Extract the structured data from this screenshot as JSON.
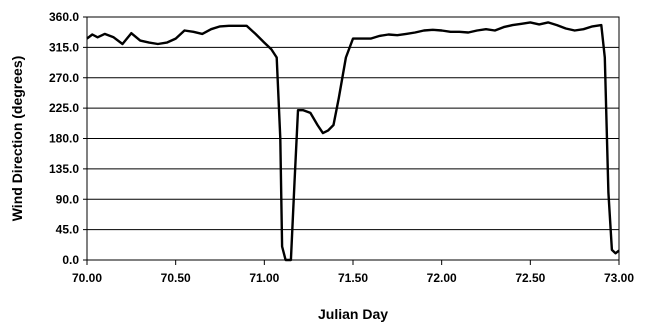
{
  "chart_data": {
    "type": "line",
    "title": "",
    "xlabel": "Julian Day",
    "ylabel": "Wind Direction (degrees)",
    "xlim": [
      70.0,
      73.0
    ],
    "ylim": [
      0.0,
      360.0
    ],
    "x_ticks": [
      70.0,
      70.5,
      71.0,
      71.5,
      72.0,
      72.5,
      73.0
    ],
    "x_tick_labels": [
      "70.00",
      "70.50",
      "71.00",
      "71.50",
      "72.00",
      "72.50",
      "73.00"
    ],
    "y_ticks": [
      0,
      45,
      90,
      135,
      180,
      225,
      270,
      315,
      360
    ],
    "y_tick_labels": [
      "0.0",
      "45.0",
      "90.0",
      "135.0",
      "180.0",
      "225.0",
      "270.0",
      "315.0",
      "360.0"
    ],
    "grid": "horizontal",
    "legend": "none",
    "line_color": "#000000",
    "series": [
      {
        "x": [
          70.0,
          70.03,
          70.06,
          70.1,
          70.15,
          70.2,
          70.25,
          70.3,
          70.35,
          70.4,
          70.45,
          70.5,
          70.55,
          70.6,
          70.65,
          70.7,
          70.75,
          70.8,
          70.85,
          70.9,
          70.95,
          71.0,
          71.04,
          71.07,
          71.09,
          71.1,
          71.12,
          71.14,
          71.15,
          71.17,
          71.19,
          71.22,
          71.26,
          71.3,
          71.33,
          71.36,
          71.39,
          71.42,
          71.46,
          71.5,
          71.55,
          71.6,
          71.65,
          71.7,
          71.75,
          71.8,
          71.85,
          71.9,
          71.95,
          72.0,
          72.05,
          72.1,
          72.15,
          72.2,
          72.25,
          72.3,
          72.35,
          72.4,
          72.45,
          72.5,
          72.55,
          72.6,
          72.65,
          72.7,
          72.75,
          72.8,
          72.85,
          72.9,
          72.92,
          72.94,
          72.96,
          72.98,
          73.0
        ],
        "values": [
          328,
          334,
          330,
          335,
          330,
          320,
          336,
          325,
          322,
          320,
          322,
          328,
          340,
          338,
          335,
          342,
          346,
          347,
          347,
          347,
          335,
          322,
          312,
          300,
          180,
          20,
          0,
          0,
          0,
          115,
          222,
          222,
          218,
          200,
          188,
          192,
          200,
          240,
          300,
          328,
          328,
          328,
          332,
          334,
          333,
          335,
          337,
          340,
          341,
          340,
          338,
          338,
          337,
          340,
          342,
          340,
          345,
          348,
          350,
          352,
          349,
          352,
          348,
          343,
          340,
          342,
          346,
          348,
          300,
          100,
          15,
          10,
          14
        ]
      }
    ]
  }
}
